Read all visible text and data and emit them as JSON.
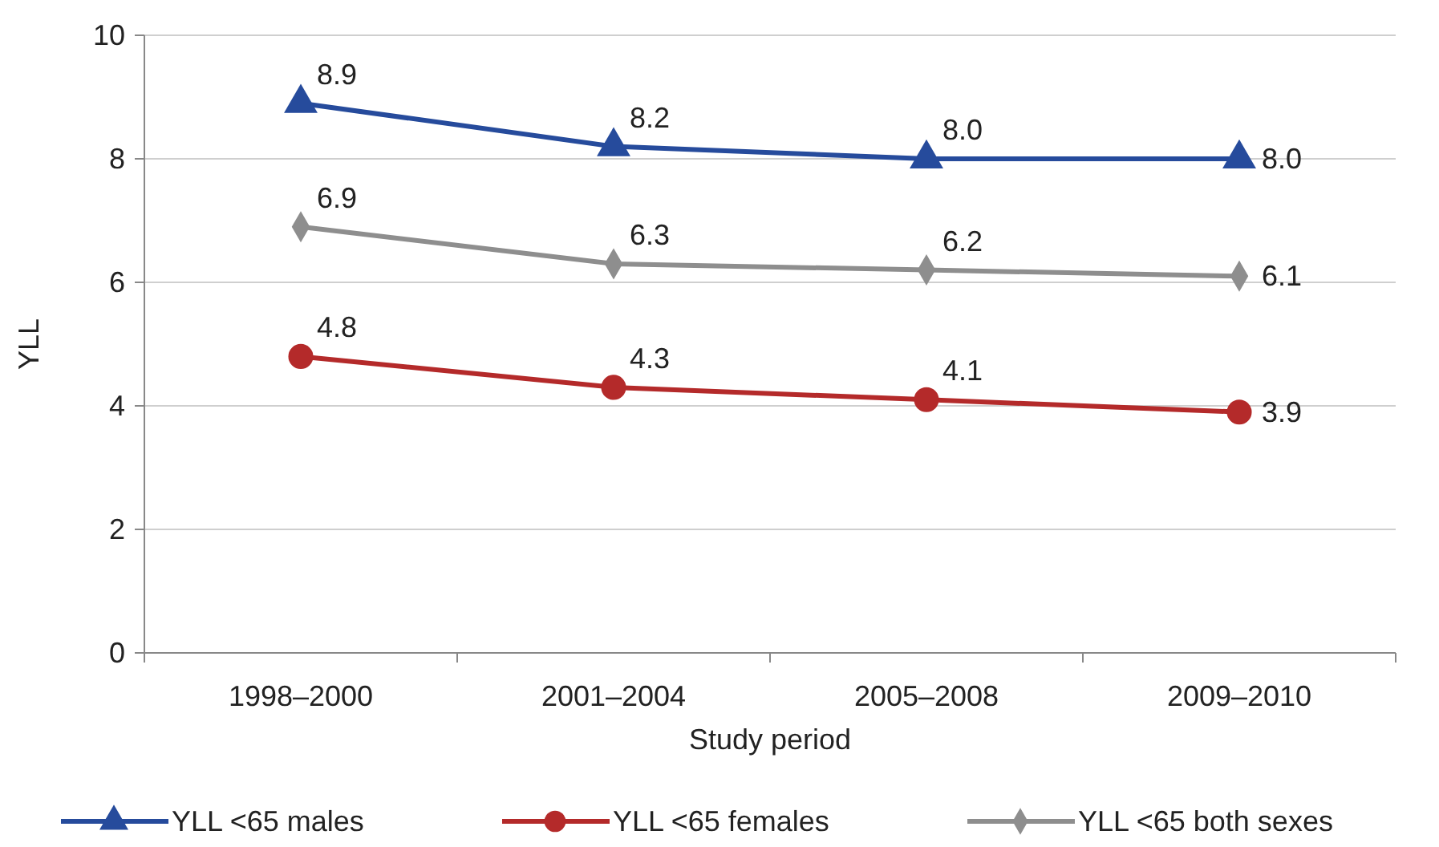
{
  "chart_data": {
    "type": "line",
    "xlabel": "Study period",
    "ylabel": "YLL",
    "categories": [
      "1998–2000",
      "2001–2004",
      "2005–2008",
      "2009–2010"
    ],
    "series": [
      {
        "name": "YLL <65 males",
        "color": "#264b9c",
        "marker": "triangle",
        "values": [
          8.9,
          8.2,
          8.0,
          8.0
        ],
        "value_labels": [
          "8.9",
          "8.2",
          "8.0",
          "8.0"
        ]
      },
      {
        "name": "YLL <65 females",
        "color": "#b42a2a",
        "marker": "circle",
        "values": [
          4.8,
          4.3,
          4.1,
          3.9
        ],
        "value_labels": [
          "4.8",
          "4.3",
          "4.1",
          "3.9"
        ]
      },
      {
        "name": "YLL <65 both sexes",
        "color": "#8e8e8e",
        "marker": "diamond",
        "values": [
          6.9,
          6.3,
          6.2,
          6.1
        ],
        "value_labels": [
          "6.9",
          "6.3",
          "6.2",
          "6.1"
        ]
      }
    ],
    "ylim": [
      0,
      10
    ],
    "yticks": [
      0,
      2,
      4,
      6,
      8,
      10
    ],
    "grid": "y",
    "legend": "bottom"
  }
}
